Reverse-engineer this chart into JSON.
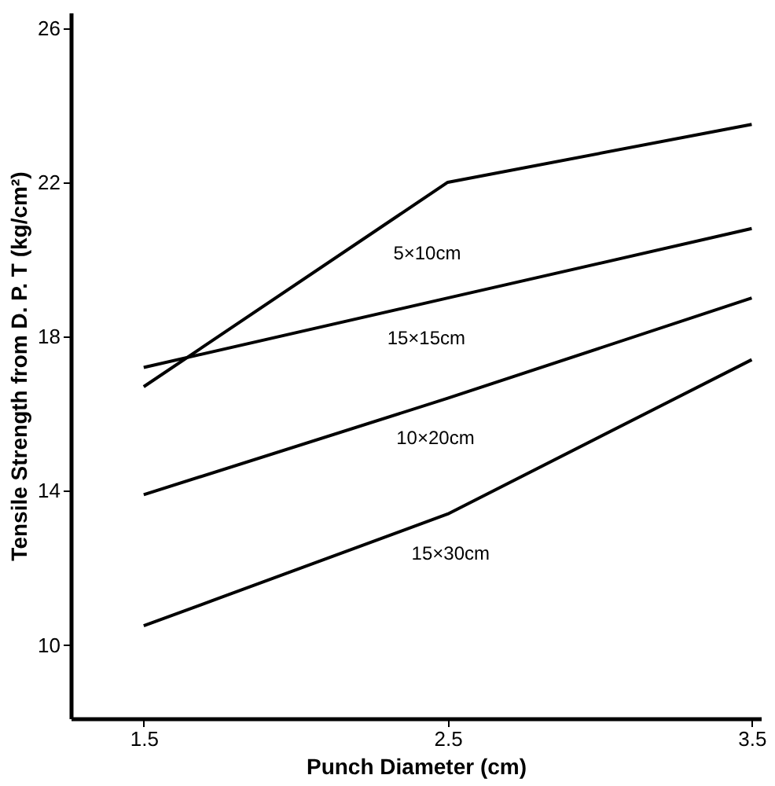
{
  "chart_data": {
    "type": "line",
    "xlabel": "Punch Diameter (cm)",
    "ylabel": "Tensile Strength from D. P. T (kg/cm²)",
    "x": [
      1.5,
      2.5,
      3.5
    ],
    "series": [
      {
        "color": "#000000",
        "values": [
          16.7,
          22.0,
          23.5
        ]
      },
      {
        "color": "#000000",
        "values": [
          17.2,
          19.0,
          20.8
        ]
      },
      {
        "color": "#000000",
        "values": [
          13.9,
          16.4,
          19.0
        ]
      },
      {
        "color": "#000000",
        "values": [
          10.5,
          13.4,
          17.4
        ]
      }
    ],
    "annotations": [
      {
        "text": "5×10cm",
        "x": 2.29,
        "y": 20.7
      },
      {
        "text": "15×15cm",
        "x": 2.27,
        "y": 18.5
      },
      {
        "text": "10×20cm",
        "x": 2.3,
        "y": 15.9
      },
      {
        "text": "15×30cm",
        "x": 2.35,
        "y": 12.9
      }
    ],
    "xlim": [
      1.26,
      3.53
    ],
    "ylim": [
      8.1,
      26.4
    ],
    "xticks": [
      1.5,
      2.5,
      3.5
    ],
    "yticks": [
      10,
      14,
      18,
      22,
      26
    ],
    "grid": false,
    "legend": false,
    "marker": "none",
    "line_style": "solid"
  }
}
